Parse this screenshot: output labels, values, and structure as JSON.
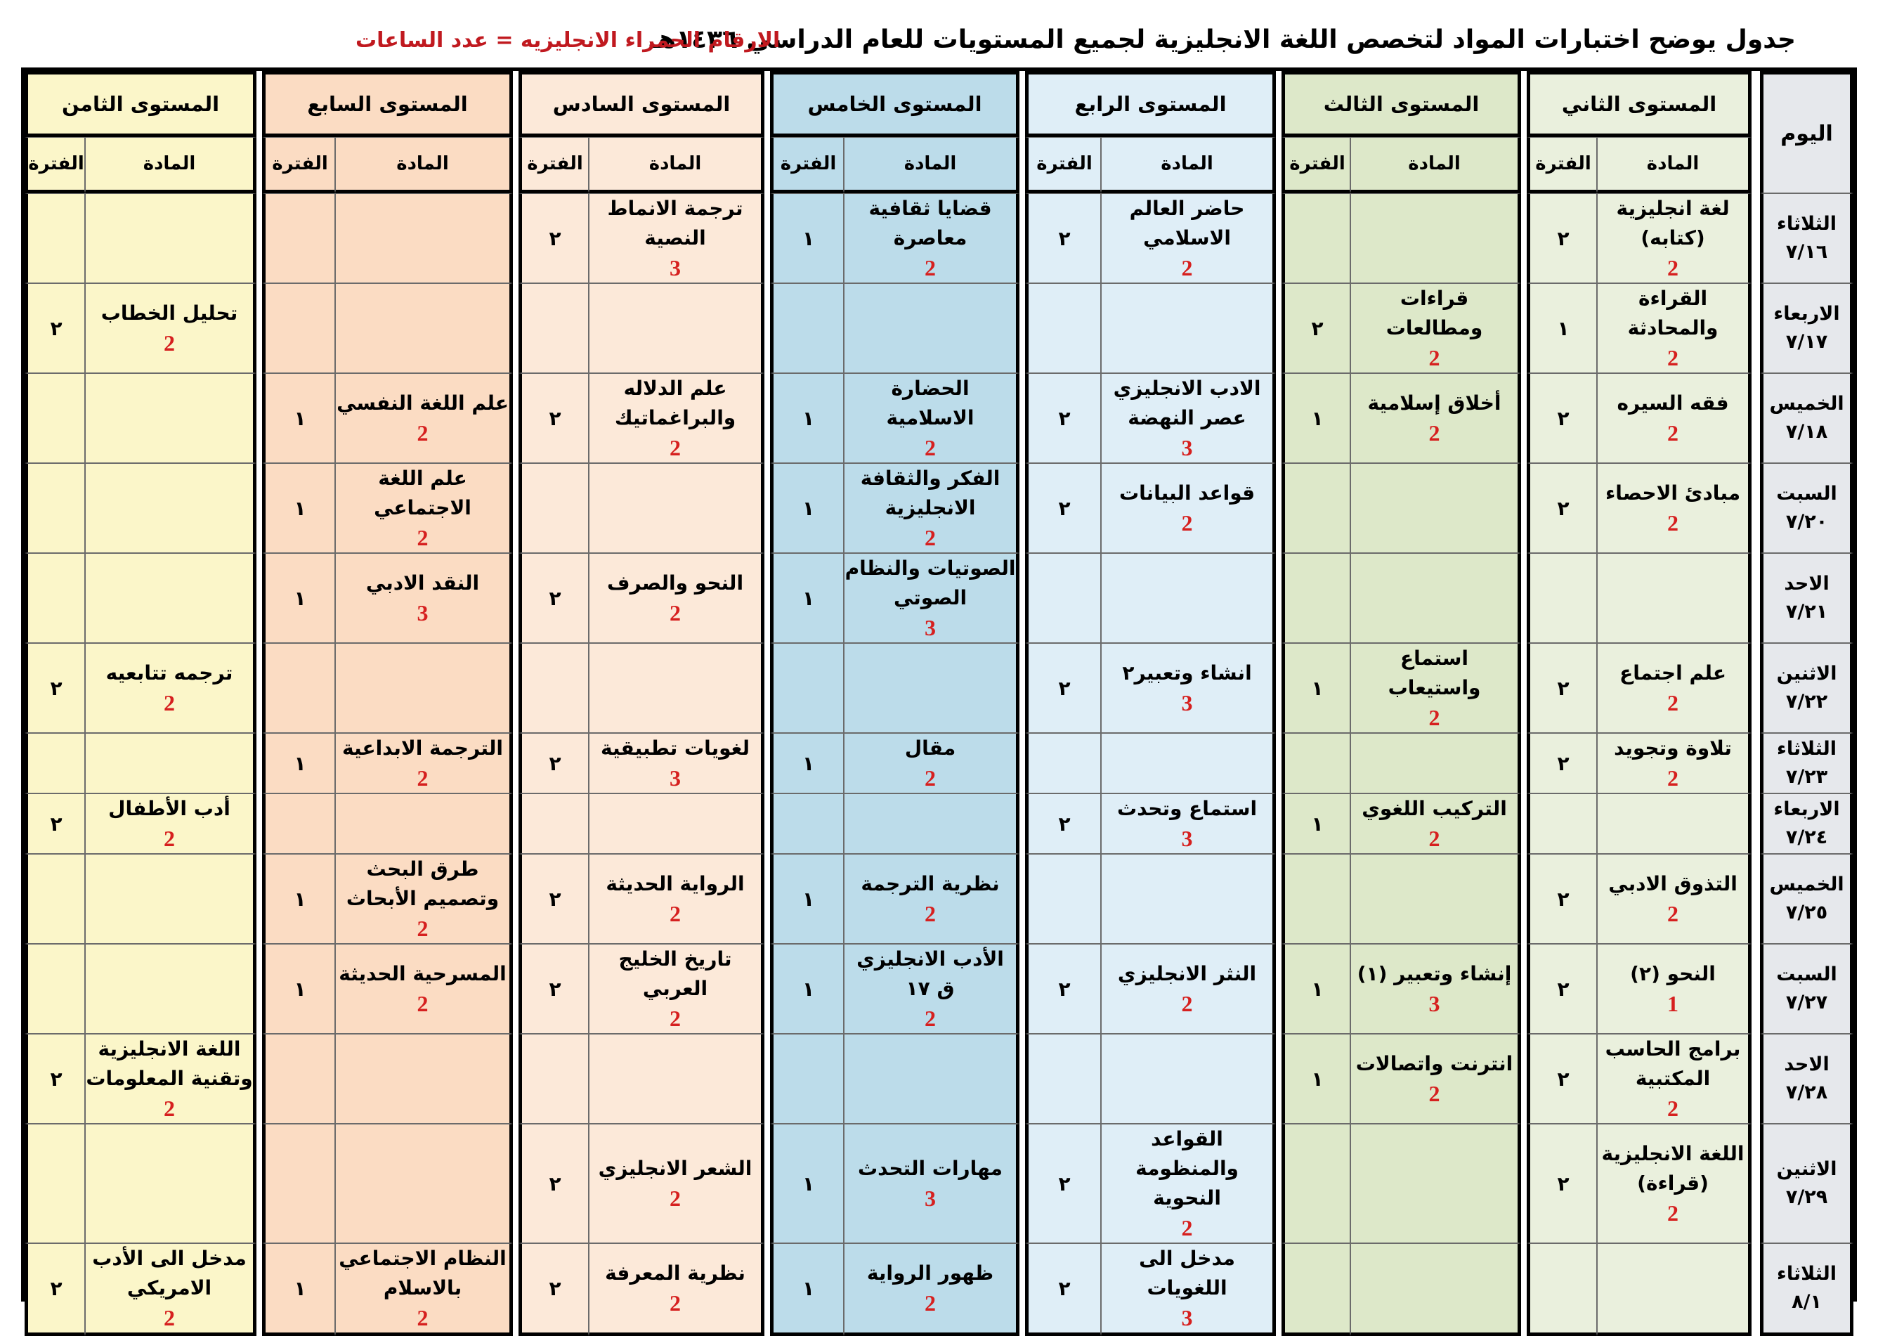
{
  "header": {
    "title": "جدول يوضح اختبارات المواد لتخصص اللغة الانجليزية لجميع المستويات للعام الدراسي ١٤٣٦هـ",
    "note": "الارقام الحمراء الانجليزيه = عدد الساعات"
  },
  "day_header": "اليوم",
  "subject_label": "المادة",
  "period_label": "الفترة",
  "levels": [
    {
      "name": "المستوى الثاني"
    },
    {
      "name": "المستوى الثالث"
    },
    {
      "name": "المستوى الرابع"
    },
    {
      "name": "المستوى الخامس"
    },
    {
      "name": "المستوى السادس"
    },
    {
      "name": "المستوى السابع"
    },
    {
      "name": "المستوى الثامن"
    }
  ],
  "rows": [
    {
      "day": "الثلاثاء",
      "date": "٧/١٦",
      "cells": [
        {
          "subject": "لغة انجليزية (كتابه)",
          "hours": "2",
          "period": "٢"
        },
        {
          "subject": "",
          "hours": "",
          "period": ""
        },
        {
          "subject": "حاضر العالم الاسلامي",
          "hours": "2",
          "period": "٢"
        },
        {
          "subject": "قضايا ثقافية معاصرة",
          "hours": "2",
          "period": "١"
        },
        {
          "subject": "ترجمة الانماط النصية",
          "hours": "3",
          "period": "٢"
        },
        {
          "subject": "",
          "hours": "",
          "period": ""
        },
        {
          "subject": "",
          "hours": "",
          "period": ""
        }
      ]
    },
    {
      "day": "الاربعاء",
      "date": "٧/١٧",
      "cells": [
        {
          "subject": "القراءة والمحادثة",
          "hours": "2",
          "period": "١"
        },
        {
          "subject": "قراءات ومطالعات",
          "hours": "2",
          "period": "٢"
        },
        {
          "subject": "",
          "hours": "",
          "period": ""
        },
        {
          "subject": "",
          "hours": "",
          "period": ""
        },
        {
          "subject": "",
          "hours": "",
          "period": ""
        },
        {
          "subject": "",
          "hours": "",
          "period": ""
        },
        {
          "subject": "تحليل الخطاب",
          "hours": "2",
          "period": "٢"
        }
      ]
    },
    {
      "day": "الخميس",
      "date": "٧/١٨",
      "cells": [
        {
          "subject": "فقه السيره",
          "hours": "2",
          "period": "٢"
        },
        {
          "subject": "أخلاق إسلامية",
          "hours": "2",
          "period": "١"
        },
        {
          "subject": "الادب الانجليزي عصر النهضة",
          "hours": "3",
          "period": "٢"
        },
        {
          "subject": "الحضارة الاسلامية",
          "hours": "2",
          "period": "١"
        },
        {
          "subject": "علم الدلاله والبراغماتيك",
          "hours": "2",
          "period": "٢"
        },
        {
          "subject": "علم اللغة النفسي",
          "hours": "2",
          "period": "١"
        },
        {
          "subject": "",
          "hours": "",
          "period": ""
        }
      ]
    },
    {
      "day": "السبت",
      "date": "٧/٢٠",
      "cells": [
        {
          "subject": "مبادئ الاحصاء",
          "hours": "2",
          "period": "٢"
        },
        {
          "subject": "",
          "hours": "",
          "period": ""
        },
        {
          "subject": "قواعد البيانات",
          "hours": "2",
          "period": "٢"
        },
        {
          "subject": "الفكر والثقافة الانجليزية",
          "hours": "2",
          "period": "١"
        },
        {
          "subject": "",
          "hours": "",
          "period": ""
        },
        {
          "subject": "علم اللغة الاجتماعي",
          "hours": "2",
          "period": "١"
        },
        {
          "subject": "",
          "hours": "",
          "period": ""
        }
      ]
    },
    {
      "day": "الاحد",
      "date": "٧/٢١",
      "cells": [
        {
          "subject": "",
          "hours": "",
          "period": ""
        },
        {
          "subject": "",
          "hours": "",
          "period": ""
        },
        {
          "subject": "",
          "hours": "",
          "period": ""
        },
        {
          "subject": "الصوتيات والنظام الصوتي",
          "hours": "3",
          "period": "١"
        },
        {
          "subject": "النحو والصرف",
          "hours": "2",
          "period": "٢"
        },
        {
          "subject": "النقد الادبي",
          "hours": "3",
          "period": "١"
        },
        {
          "subject": "",
          "hours": "",
          "period": ""
        }
      ]
    },
    {
      "day": "الاثنين",
      "date": "٧/٢٢",
      "cells": [
        {
          "subject": "علم اجتماع",
          "hours": "2",
          "period": "٢"
        },
        {
          "subject": "استماع واستيعاب",
          "hours": "2",
          "period": "١"
        },
        {
          "subject": "انشاء وتعبير٢",
          "hours": "3",
          "period": "٢"
        },
        {
          "subject": "",
          "hours": "",
          "period": ""
        },
        {
          "subject": "",
          "hours": "",
          "period": ""
        },
        {
          "subject": "",
          "hours": "",
          "period": ""
        },
        {
          "subject": "ترجمه تتابعيه",
          "hours": "2",
          "period": "٢"
        }
      ]
    },
    {
      "day": "الثلاثاء",
      "date": "٧/٢٣",
      "cells": [
        {
          "subject": "تلاوة وتجويد",
          "hours": "2",
          "period": "٢"
        },
        {
          "subject": "",
          "hours": "",
          "period": ""
        },
        {
          "subject": "",
          "hours": "",
          "period": ""
        },
        {
          "subject": "مقال",
          "hours": "2",
          "period": "١"
        },
        {
          "subject": "لغويات تطبيقية",
          "hours": "3",
          "period": "٢"
        },
        {
          "subject": "الترجمة الابداعية",
          "hours": "2",
          "period": "١"
        },
        {
          "subject": "",
          "hours": "",
          "period": ""
        }
      ]
    },
    {
      "day": "الاربعاء",
      "date": "٧/٢٤",
      "cells": [
        {
          "subject": "",
          "hours": "",
          "period": ""
        },
        {
          "subject": "التركيب اللغوي",
          "hours": "2",
          "period": "١"
        },
        {
          "subject": "استماع وتحدث",
          "hours": "3",
          "period": "٢"
        },
        {
          "subject": "",
          "hours": "",
          "period": ""
        },
        {
          "subject": "",
          "hours": "",
          "period": ""
        },
        {
          "subject": "",
          "hours": "",
          "period": ""
        },
        {
          "subject": "أدب الأطفال",
          "hours": "2",
          "period": "٢"
        }
      ]
    },
    {
      "day": "الخميس",
      "date": "٧/٢٥",
      "cells": [
        {
          "subject": "التذوق الادبي",
          "hours": "2",
          "period": "٢"
        },
        {
          "subject": "",
          "hours": "",
          "period": ""
        },
        {
          "subject": "",
          "hours": "",
          "period": ""
        },
        {
          "subject": "نظرية الترجمة",
          "hours": "2",
          "period": "١"
        },
        {
          "subject": "الرواية الحديثة",
          "hours": "2",
          "period": "٢"
        },
        {
          "subject": "طرق البحث وتصميم الأبحاث",
          "hours": "2",
          "period": "١"
        },
        {
          "subject": "",
          "hours": "",
          "period": ""
        }
      ]
    },
    {
      "day": "السبت",
      "date": "٧/٢٧",
      "cells": [
        {
          "subject": "النحو (٢)",
          "hours": "1",
          "period": "٢"
        },
        {
          "subject": "إنشاء وتعبير (١)",
          "hours": "3",
          "period": "١"
        },
        {
          "subject": "النثر الانجليزي",
          "hours": "2",
          "period": "٢"
        },
        {
          "subject": "الأدب الانجليزي ق ١٧",
          "hours": "2",
          "period": "١"
        },
        {
          "subject": "تاريخ الخليج العربي",
          "hours": "2",
          "period": "٢"
        },
        {
          "subject": "المسرحية الحديثة",
          "hours": "2",
          "period": "١"
        },
        {
          "subject": "",
          "hours": "",
          "period": ""
        }
      ]
    },
    {
      "day": "الاحد",
      "date": "٧/٢٨",
      "cells": [
        {
          "subject": "برامج الحاسب المكتبية",
          "hours": "2",
          "period": "٢"
        },
        {
          "subject": "انترنت واتصالات",
          "hours": "2",
          "period": "١"
        },
        {
          "subject": "",
          "hours": "",
          "period": ""
        },
        {
          "subject": "",
          "hours": "",
          "period": ""
        },
        {
          "subject": "",
          "hours": "",
          "period": ""
        },
        {
          "subject": "",
          "hours": "",
          "period": ""
        },
        {
          "subject": "اللغة الانجليزية وتقنية المعلومات",
          "hours": "2",
          "period": "٢"
        }
      ]
    },
    {
      "day": "الاثنين",
      "date": "٧/٢٩",
      "cells": [
        {
          "subject": "اللغة الانجليزية (قراءة)",
          "hours": "2",
          "period": "٢"
        },
        {
          "subject": "",
          "hours": "",
          "period": ""
        },
        {
          "subject": "القواعد والمنظومة النحوية",
          "hours": "2",
          "period": "٢"
        },
        {
          "subject": "مهارات التحدث",
          "hours": "3",
          "period": "١"
        },
        {
          "subject": "الشعر الانجليزي",
          "hours": "2",
          "period": "٢"
        },
        {
          "subject": "",
          "hours": "",
          "period": ""
        },
        {
          "subject": "",
          "hours": "",
          "period": ""
        }
      ]
    },
    {
      "day": "الثلاثاء",
      "date": "٨/١",
      "cells": [
        {
          "subject": "",
          "hours": "",
          "period": ""
        },
        {
          "subject": "",
          "hours": "",
          "period": ""
        },
        {
          "subject": "مدخل الى اللغويات",
          "hours": "3",
          "period": "٢"
        },
        {
          "subject": "ظهور الرواية",
          "hours": "2",
          "period": "١"
        },
        {
          "subject": "نظرية المعرفة",
          "hours": "2",
          "period": "٢"
        },
        {
          "subject": "النظام الاجتماعي بالاسلام",
          "hours": "2",
          "period": "١"
        },
        {
          "subject": "مدخل الى الأدب الامريكي",
          "hours": "2",
          "period": "٢"
        }
      ]
    }
  ]
}
